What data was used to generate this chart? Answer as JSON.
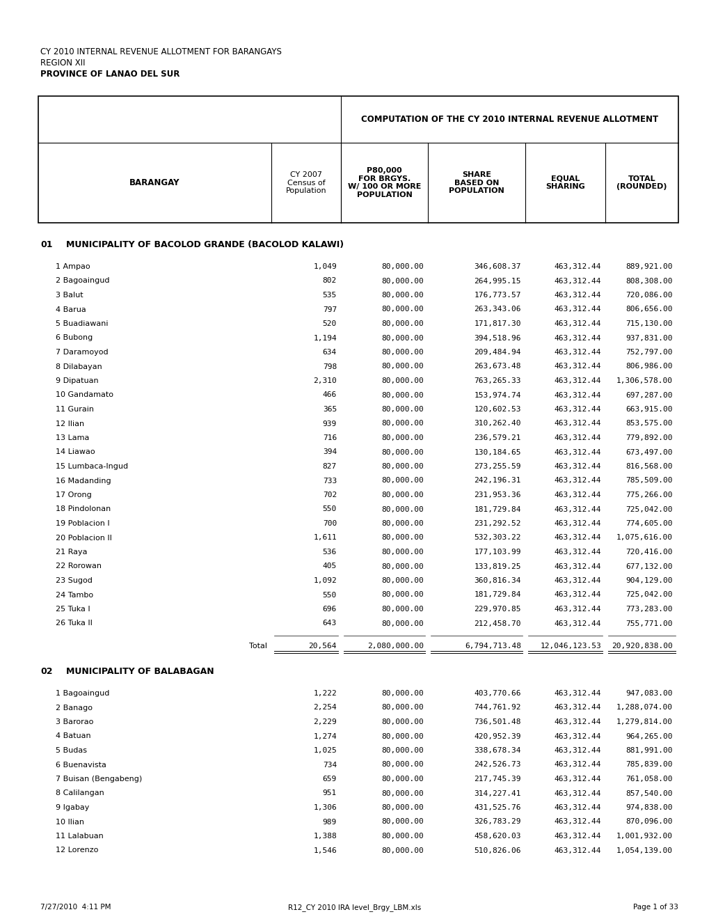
{
  "header_line1": "CY 2010 INTERNAL REVENUE ALLOTMENT FOR BARANGAYS",
  "header_line2": "REGION XII",
  "header_line3": "PROVINCE OF LANAO DEL SUR",
  "computation_header": "COMPUTATION OF THE CY 2010 INTERNAL REVENUE ALLOTMENT",
  "col_headers_row2": [
    "BARANGAY",
    "CY 2007\nCensus of\nPopulation",
    "P80,000\nFOR BRGYS.\nW/ 100 OR MORE\nPOPULATION",
    "SHARE\nBASED ON\nPOPULATION",
    "EQUAL\nSHARING",
    "TOTAL\n(ROUNDED)"
  ],
  "section1_num": "01",
  "section1_title": "MUNICIPALITY OF BACOLOD GRANDE (BACOLOD KALAWI)",
  "section1_rows": [
    [
      "1 Ampao",
      "1,049",
      "80,000.00",
      "346,608.37",
      "463,312.44",
      "889,921.00"
    ],
    [
      "2 Bagoaingud",
      "802",
      "80,000.00",
      "264,995.15",
      "463,312.44",
      "808,308.00"
    ],
    [
      "3 Balut",
      "535",
      "80,000.00",
      "176,773.57",
      "463,312.44",
      "720,086.00"
    ],
    [
      "4 Barua",
      "797",
      "80,000.00",
      "263,343.06",
      "463,312.44",
      "806,656.00"
    ],
    [
      "5 Buadiawani",
      "520",
      "80,000.00",
      "171,817.30",
      "463,312.44",
      "715,130.00"
    ],
    [
      "6 Bubong",
      "1,194",
      "80,000.00",
      "394,518.96",
      "463,312.44",
      "937,831.00"
    ],
    [
      "7 Daramoyod",
      "634",
      "80,000.00",
      "209,484.94",
      "463,312.44",
      "752,797.00"
    ],
    [
      "8 Dilabayan",
      "798",
      "80,000.00",
      "263,673.48",
      "463,312.44",
      "806,986.00"
    ],
    [
      "9 Dipatuan",
      "2,310",
      "80,000.00",
      "763,265.33",
      "463,312.44",
      "1,306,578.00"
    ],
    [
      "10 Gandamato",
      "466",
      "80,000.00",
      "153,974.74",
      "463,312.44",
      "697,287.00"
    ],
    [
      "11 Gurain",
      "365",
      "80,000.00",
      "120,602.53",
      "463,312.44",
      "663,915.00"
    ],
    [
      "12 Ilian",
      "939",
      "80,000.00",
      "310,262.40",
      "463,312.44",
      "853,575.00"
    ],
    [
      "13 Lama",
      "716",
      "80,000.00",
      "236,579.21",
      "463,312.44",
      "779,892.00"
    ],
    [
      "14 Liawao",
      "394",
      "80,000.00",
      "130,184.65",
      "463,312.44",
      "673,497.00"
    ],
    [
      "15 Lumbaca-Ingud",
      "827",
      "80,000.00",
      "273,255.59",
      "463,312.44",
      "816,568.00"
    ],
    [
      "16 Madanding",
      "733",
      "80,000.00",
      "242,196.31",
      "463,312.44",
      "785,509.00"
    ],
    [
      "17 Orong",
      "702",
      "80,000.00",
      "231,953.36",
      "463,312.44",
      "775,266.00"
    ],
    [
      "18 Pindolonan",
      "550",
      "80,000.00",
      "181,729.84",
      "463,312.44",
      "725,042.00"
    ],
    [
      "19 Poblacion I",
      "700",
      "80,000.00",
      "231,292.52",
      "463,312.44",
      "774,605.00"
    ],
    [
      "20 Poblacion II",
      "1,611",
      "80,000.00",
      "532,303.22",
      "463,312.44",
      "1,075,616.00"
    ],
    [
      "21 Raya",
      "536",
      "80,000.00",
      "177,103.99",
      "463,312.44",
      "720,416.00"
    ],
    [
      "22 Rorowan",
      "405",
      "80,000.00",
      "133,819.25",
      "463,312.44",
      "677,132.00"
    ],
    [
      "23 Sugod",
      "1,092",
      "80,000.00",
      "360,816.34",
      "463,312.44",
      "904,129.00"
    ],
    [
      "24 Tambo",
      "550",
      "80,000.00",
      "181,729.84",
      "463,312.44",
      "725,042.00"
    ],
    [
      "25 Tuka I",
      "696",
      "80,000.00",
      "229,970.85",
      "463,312.44",
      "773,283.00"
    ],
    [
      "26 Tuka II",
      "643",
      "80,000.00",
      "212,458.70",
      "463,312.44",
      "755,771.00"
    ]
  ],
  "section1_total": [
    "Total",
    "20,564",
    "2,080,000.00",
    "6,794,713.48",
    "12,046,123.53",
    "20,920,838.00"
  ],
  "section2_num": "02",
  "section2_title": "MUNICIPALITY OF BALABAGAN",
  "section2_rows": [
    [
      "1 Bagoaingud",
      "1,222",
      "80,000.00",
      "403,770.66",
      "463,312.44",
      "947,083.00"
    ],
    [
      "2 Banago",
      "2,254",
      "80,000.00",
      "744,761.92",
      "463,312.44",
      "1,288,074.00"
    ],
    [
      "3 Barorao",
      "2,229",
      "80,000.00",
      "736,501.48",
      "463,312.44",
      "1,279,814.00"
    ],
    [
      "4 Batuan",
      "1,274",
      "80,000.00",
      "420,952.39",
      "463,312.44",
      "964,265.00"
    ],
    [
      "5 Budas",
      "1,025",
      "80,000.00",
      "338,678.34",
      "463,312.44",
      "881,991.00"
    ],
    [
      "6 Buenavista",
      "734",
      "80,000.00",
      "242,526.73",
      "463,312.44",
      "785,839.00"
    ],
    [
      "7 Buisan (Bengabeng)",
      "659",
      "80,000.00",
      "217,745.39",
      "463,312.44",
      "761,058.00"
    ],
    [
      "8 Calilangan",
      "951",
      "80,000.00",
      "314,227.41",
      "463,312.44",
      "857,540.00"
    ],
    [
      "9 Igabay",
      "1,306",
      "80,000.00",
      "431,525.76",
      "463,312.44",
      "974,838.00"
    ],
    [
      "10 Ilian",
      "989",
      "80,000.00",
      "326,783.29",
      "463,312.44",
      "870,096.00"
    ],
    [
      "11 Lalabuan",
      "1,388",
      "80,000.00",
      "458,620.03",
      "463,312.44",
      "1,001,932.00"
    ],
    [
      "12 Lorenzo",
      "1,546",
      "80,000.00",
      "510,826.06",
      "463,312.44",
      "1,054,139.00"
    ]
  ],
  "footer_left": "7/27/2010  4:11 PM",
  "footer_center": "R12_CY 2010 IRA level_Brgy_LBM.xls",
  "footer_right": "Page 1 of 33"
}
